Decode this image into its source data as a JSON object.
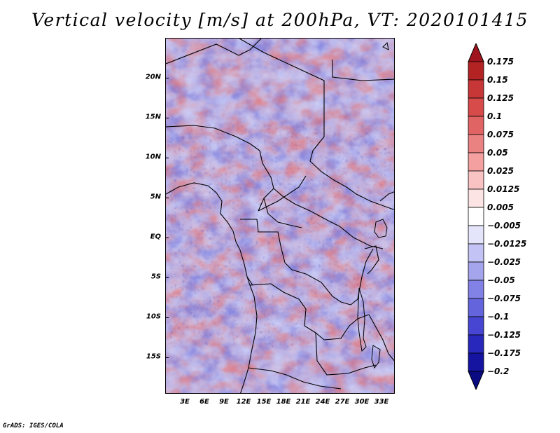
{
  "title": "Vertical velocity [m/s] at 200hPa, VT: 2020101415",
  "footer": "GrADS: IGES/COLA",
  "map": {
    "region": "Central Africa",
    "lat_range": [
      -20,
      24.5
    ],
    "lon_range": [
      0,
      35
    ],
    "lat_labels": [
      {
        "text": "20N",
        "value": 20
      },
      {
        "text": "15N",
        "value": 15
      },
      {
        "text": "10N",
        "value": 10
      },
      {
        "text": "5N",
        "value": 5
      },
      {
        "text": "EQ",
        "value": 0
      },
      {
        "text": "5S",
        "value": -5
      },
      {
        "text": "10S",
        "value": -10
      },
      {
        "text": "15S",
        "value": -15
      }
    ],
    "lon_labels": [
      {
        "text": "3E",
        "value": 3
      },
      {
        "text": "6E",
        "value": 6
      },
      {
        "text": "9E",
        "value": 9
      },
      {
        "text": "12E",
        "value": 12
      },
      {
        "text": "15E",
        "value": 15
      },
      {
        "text": "18E",
        "value": 18
      },
      {
        "text": "21E",
        "value": 21
      },
      {
        "text": "24E",
        "value": 24
      },
      {
        "text": "27E",
        "value": 27
      },
      {
        "text": "30E",
        "value": 30
      },
      {
        "text": "33E",
        "value": 33
      }
    ]
  },
  "colorbar": {
    "levels": [
      "0.175",
      "0.15",
      "0.125",
      "0.1",
      "0.075",
      "0.05",
      "0.025",
      "0.0125",
      "0.005",
      "−0.005",
      "−0.0125",
      "−0.025",
      "−0.05",
      "−0.075",
      "−0.1",
      "−0.125",
      "−0.175",
      "−0.2"
    ],
    "colors": [
      "#a0141e",
      "#b42323",
      "#c83737",
      "#d74b4b",
      "#e16464",
      "#eb8282",
      "#f5a0a0",
      "#fac3c3",
      "#fde4e4",
      "#ffffff",
      "#e4e4fb",
      "#c3c3f5",
      "#a5a5ee",
      "#8282e6",
      "#6464dc",
      "#4646d2",
      "#2828bc",
      "#1414a0",
      "#0a0a82"
    ]
  }
}
